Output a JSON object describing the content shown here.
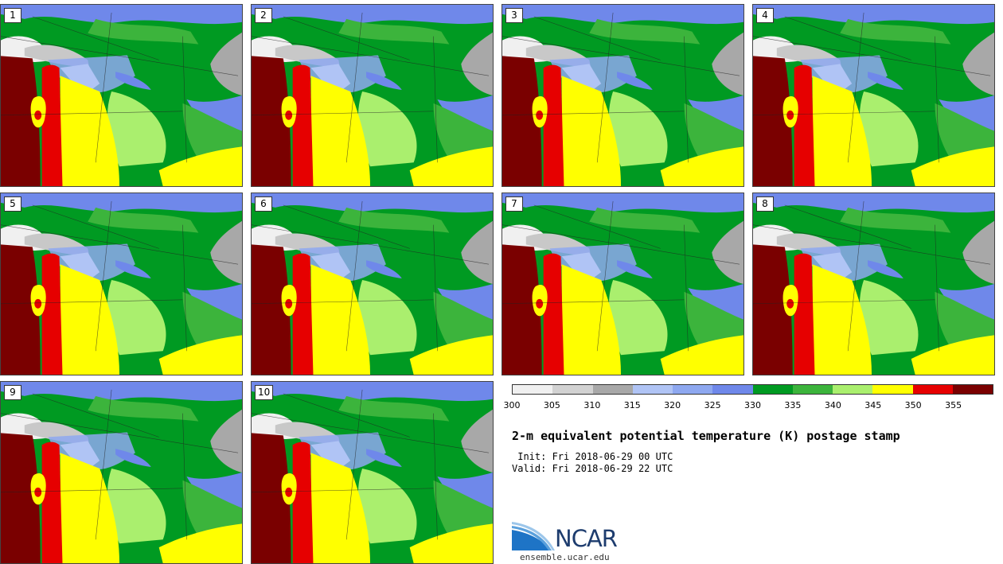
{
  "panels": [
    {
      "label": "1"
    },
    {
      "label": "2"
    },
    {
      "label": "3"
    },
    {
      "label": "4"
    },
    {
      "label": "5"
    },
    {
      "label": "6"
    },
    {
      "label": "7"
    },
    {
      "label": "8"
    },
    {
      "label": "9"
    },
    {
      "label": "10"
    }
  ],
  "colorbar": {
    "colors": [
      "#f0f0f0",
      "#d2d2d2",
      "#a8a8a8",
      "#b0c4f5",
      "#8ea8f0",
      "#6f88ea",
      "#009a22",
      "#3cb43c",
      "#aaef6e",
      "#ffff00",
      "#e60000",
      "#7a0000"
    ],
    "ticks": [
      "300",
      "305",
      "310",
      "315",
      "320",
      "325",
      "330",
      "335",
      "340",
      "345",
      "350",
      "355"
    ]
  },
  "title": "2-m equivalent potential temperature (K) postage stamp",
  "init": " Init: Fri 2018-06-29 00 UTC",
  "valid": "Valid: Fri 2018-06-29 22 UTC",
  "logo": {
    "text": "NCAR"
  },
  "site": "ensemble.ucar.edu"
}
